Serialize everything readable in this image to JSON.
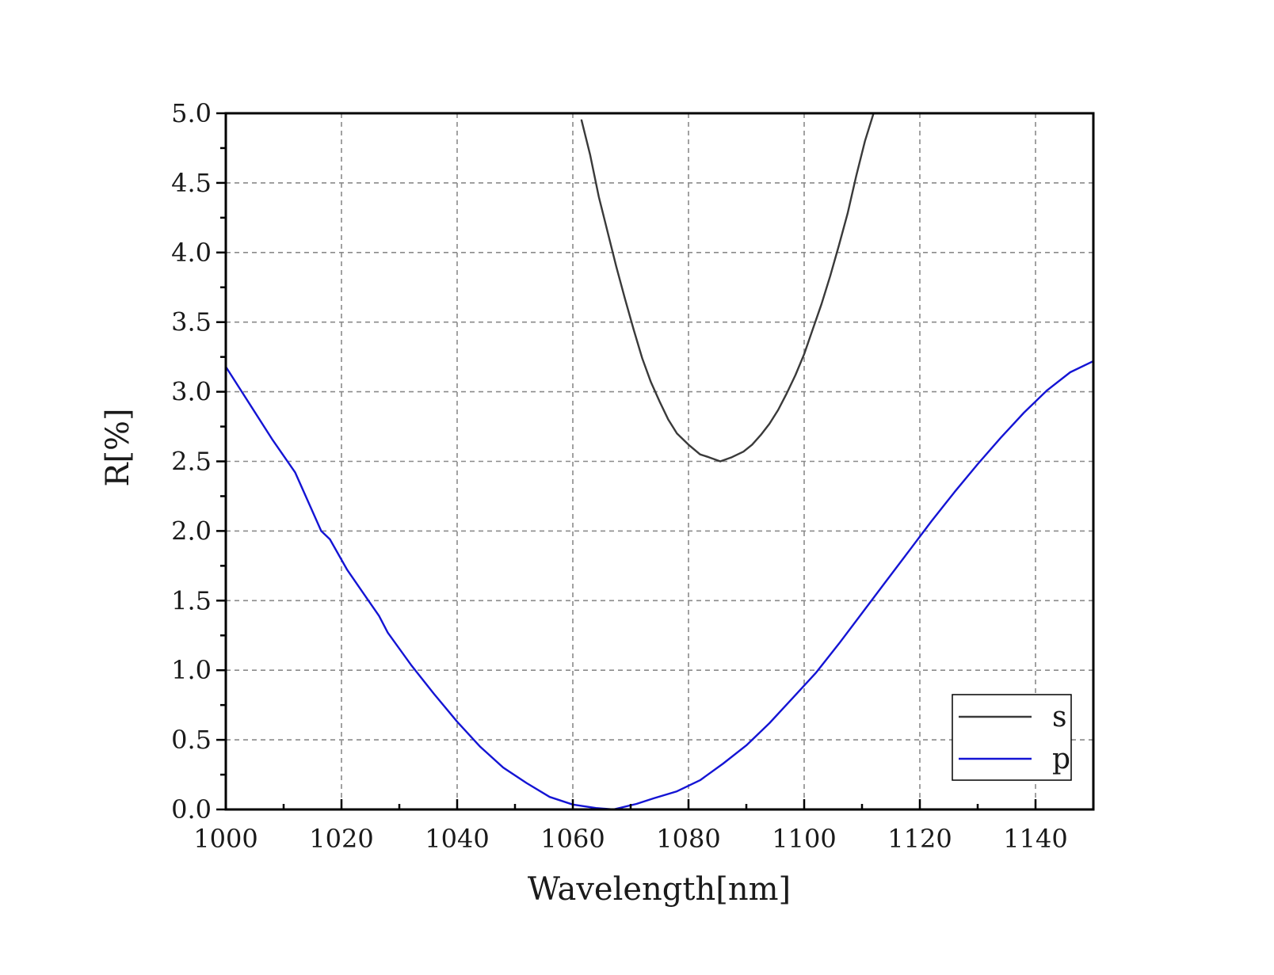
{
  "chart_data": {
    "type": "line",
    "title": "",
    "xlabel": "Wavelength[nm]",
    "ylabel": "R[%]",
    "xlim": [
      1000,
      1150
    ],
    "ylim": [
      0,
      5.0
    ],
    "x_ticks": [
      1000,
      1020,
      1040,
      1060,
      1080,
      1100,
      1120,
      1140
    ],
    "x_tick_labels": [
      "1000",
      "1020",
      "1040",
      "1060",
      "1080",
      "1100",
      "1120",
      "1140"
    ],
    "y_ticks": [
      0,
      0.5,
      1.0,
      1.5,
      2.0,
      2.5,
      3.0,
      3.5,
      4.0,
      4.5,
      5.0
    ],
    "y_tick_labels": [
      "0.0",
      "0.5",
      "1.0",
      "1.5",
      "2.0",
      "2.5",
      "3.0",
      "3.5",
      "4.0",
      "4.5",
      "5.0"
    ],
    "grid": true,
    "legend_position": "bottom-right",
    "series": [
      {
        "name": "s",
        "color": "#3a3a3a",
        "points": [
          [
            1061.5,
            4.95
          ],
          [
            1063,
            4.7
          ],
          [
            1064.5,
            4.4
          ],
          [
            1066,
            4.15
          ],
          [
            1067.5,
            3.9
          ],
          [
            1069,
            3.67
          ],
          [
            1070.5,
            3.45
          ],
          [
            1072,
            3.24
          ],
          [
            1073.5,
            3.07
          ],
          [
            1075,
            2.93
          ],
          [
            1076.5,
            2.8
          ],
          [
            1078,
            2.7
          ],
          [
            1080,
            2.62
          ],
          [
            1082,
            2.55
          ],
          [
            1083.5,
            2.53
          ],
          [
            1085.5,
            2.5
          ],
          [
            1087.5,
            2.53
          ],
          [
            1089.5,
            2.57
          ],
          [
            1091,
            2.62
          ],
          [
            1092.5,
            2.69
          ],
          [
            1094,
            2.77
          ],
          [
            1095.5,
            2.87
          ],
          [
            1097,
            2.99
          ],
          [
            1098.5,
            3.12
          ],
          [
            1100,
            3.27
          ],
          [
            1101.5,
            3.45
          ],
          [
            1103,
            3.63
          ],
          [
            1104.5,
            3.83
          ],
          [
            1106,
            4.05
          ],
          [
            1107.5,
            4.28
          ],
          [
            1109,
            4.55
          ],
          [
            1110.5,
            4.8
          ],
          [
            1112,
            5.0
          ]
        ]
      },
      {
        "name": "p",
        "color": "#1414d4",
        "points": [
          [
            1000,
            3.18
          ],
          [
            1004,
            2.92
          ],
          [
            1008,
            2.66
          ],
          [
            1012,
            2.42
          ],
          [
            1016.5,
            2.0
          ],
          [
            1018,
            1.94
          ],
          [
            1021,
            1.72
          ],
          [
            1024,
            1.54
          ],
          [
            1026.5,
            1.39
          ],
          [
            1028,
            1.27
          ],
          [
            1032,
            1.04
          ],
          [
            1036,
            0.83
          ],
          [
            1040,
            0.63
          ],
          [
            1044,
            0.45
          ],
          [
            1048,
            0.3
          ],
          [
            1052,
            0.19
          ],
          [
            1056,
            0.09
          ],
          [
            1060,
            0.035
          ],
          [
            1064,
            0.01
          ],
          [
            1067,
            0.0
          ],
          [
            1071,
            0.04
          ],
          [
            1074,
            0.08
          ],
          [
            1078,
            0.13
          ],
          [
            1082,
            0.21
          ],
          [
            1086,
            0.33
          ],
          [
            1090,
            0.46
          ],
          [
            1094,
            0.62
          ],
          [
            1098,
            0.8
          ],
          [
            1102,
            0.98
          ],
          [
            1106,
            1.19
          ],
          [
            1110,
            1.41
          ],
          [
            1114,
            1.63
          ],
          [
            1118,
            1.85
          ],
          [
            1122,
            2.07
          ],
          [
            1126,
            2.28
          ],
          [
            1130,
            2.48
          ],
          [
            1134,
            2.67
          ],
          [
            1138,
            2.85
          ],
          [
            1142,
            3.01
          ],
          [
            1146,
            3.14
          ],
          [
            1150,
            3.22
          ]
        ]
      }
    ]
  }
}
